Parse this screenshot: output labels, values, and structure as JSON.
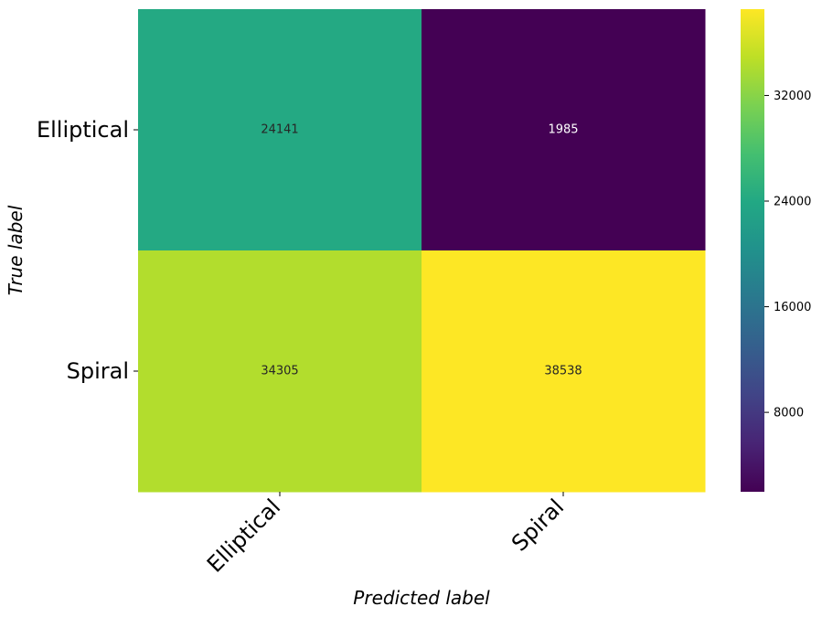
{
  "chart_data": {
    "type": "heatmap",
    "row_labels": [
      "Elliptical",
      "Spiral"
    ],
    "col_labels": [
      "Elliptical",
      "Spiral"
    ],
    "values": [
      [
        24141,
        1985
      ],
      [
        34305,
        38538
      ]
    ],
    "xlabel": "Predicted label",
    "ylabel": "True label",
    "colormap": "viridis",
    "colorbar": {
      "min": 1985,
      "max": 38538,
      "ticks": [
        8000,
        16000,
        24000,
        32000
      ],
      "tick_labels": [
        "8000",
        "16000",
        "24000",
        "32000"
      ]
    },
    "legend": "colorbar-right"
  }
}
